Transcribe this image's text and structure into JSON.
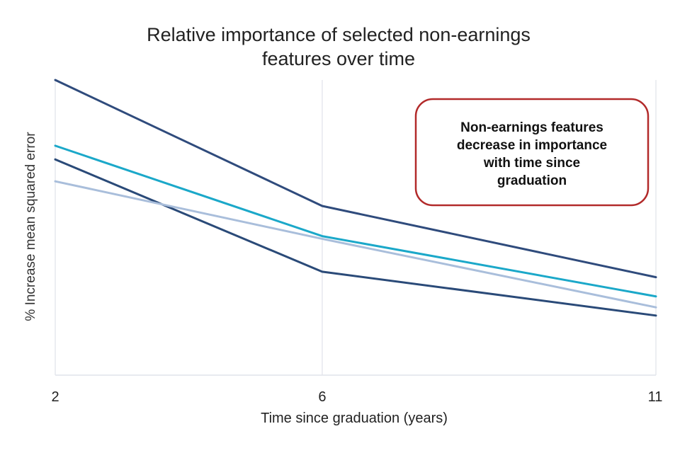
{
  "chart_data": {
    "type": "line",
    "title_lines": [
      "Relative importance of selected non-earnings",
      "features over time"
    ],
    "xlabel": "Time since graduation (years)",
    "ylabel": "% Increase mean squared error",
    "x": [
      2,
      6,
      11
    ],
    "x_tick_labels": [
      "2",
      "6",
      "11"
    ],
    "ylim": [
      0,
      100
    ],
    "y_ticks_shown": false,
    "grid": "vertical",
    "series": [
      {
        "color": "#2f4b7c",
        "values": [
          100,
          54,
          28
        ]
      },
      {
        "color": "#1ba8c9",
        "values": [
          76,
          43,
          21
        ]
      },
      {
        "color": "#2a4a78",
        "values": [
          71,
          30,
          14
        ]
      },
      {
        "color": "#a9bedb",
        "values": [
          63,
          42,
          17
        ]
      }
    ],
    "annotation": {
      "lines": [
        "Non-earnings features",
        "decrease in importance",
        "with time since",
        "graduation"
      ],
      "border_color": "#b22a2a"
    }
  }
}
